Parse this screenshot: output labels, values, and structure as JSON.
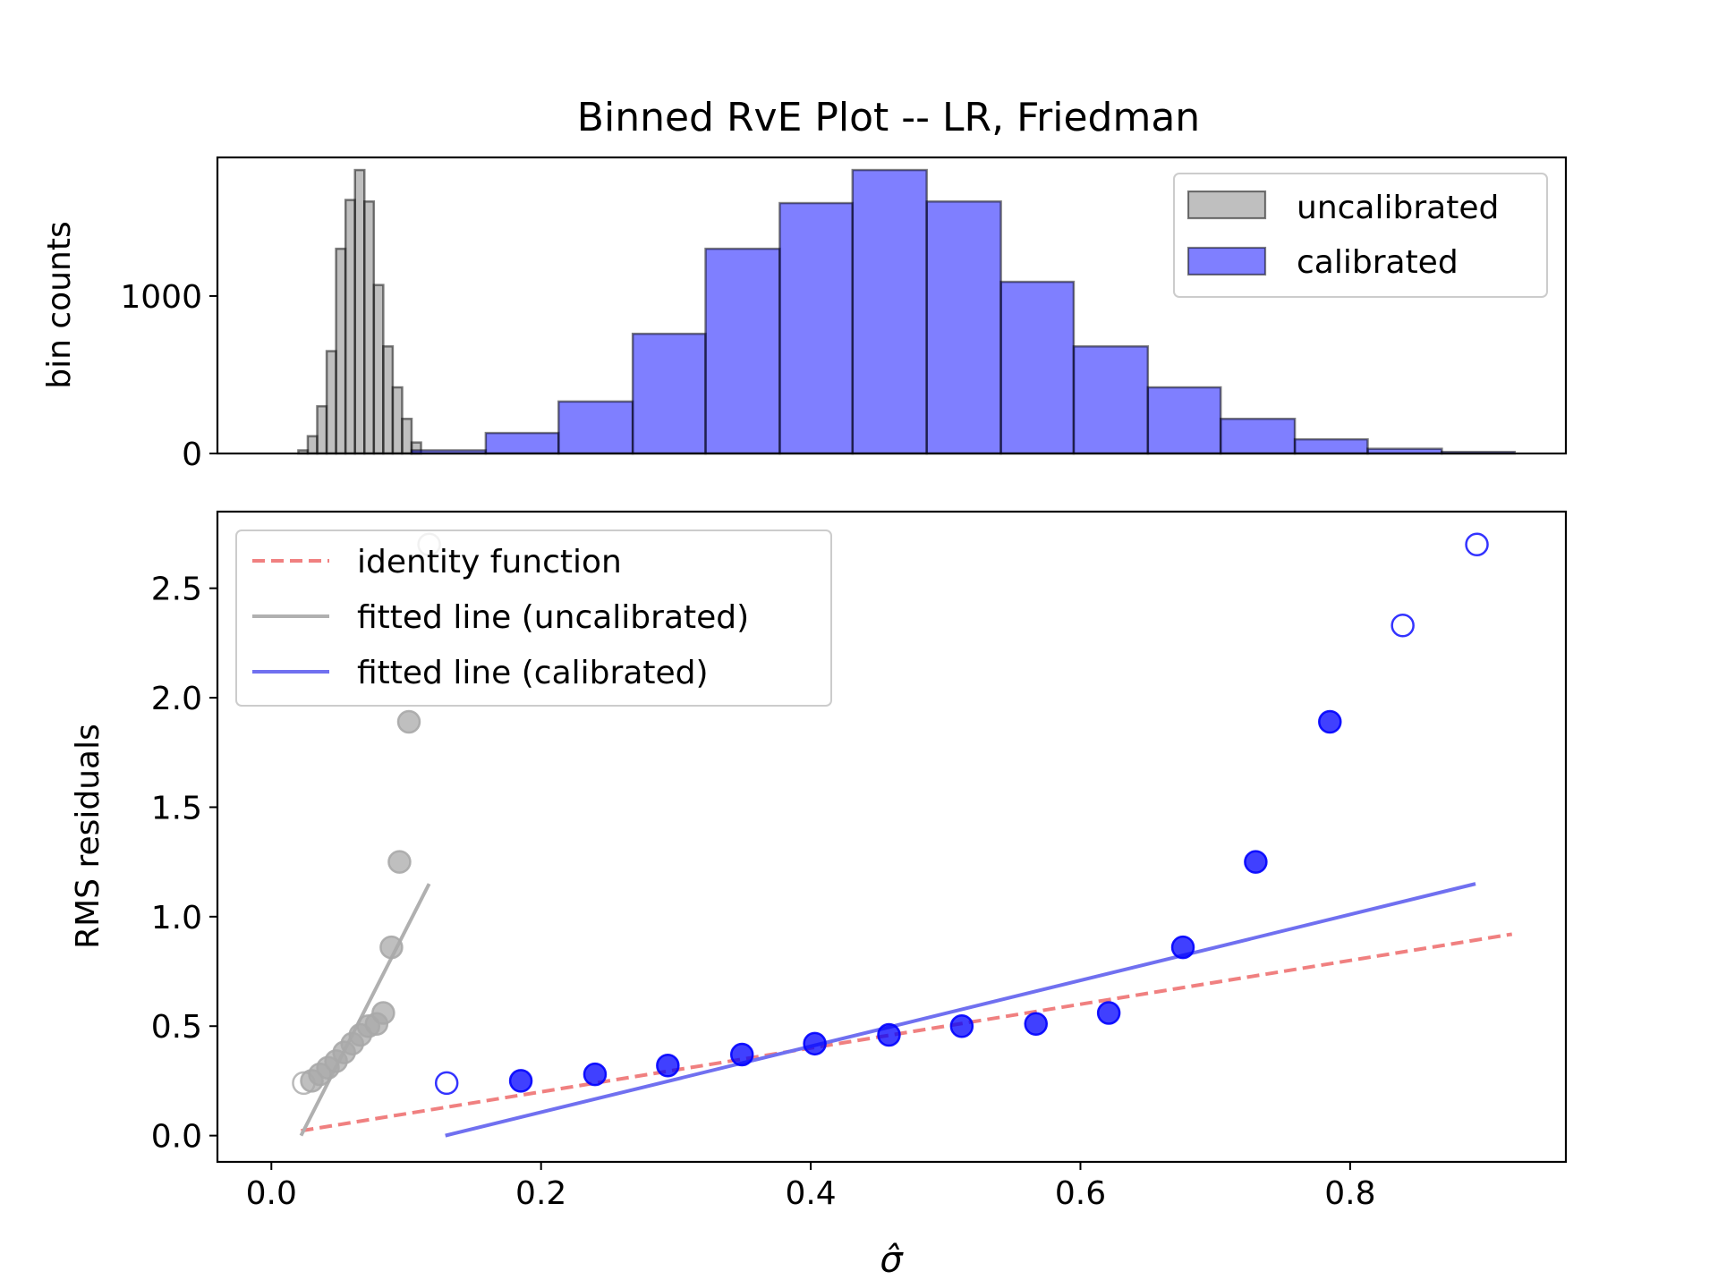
{
  "chart_data": [
    {
      "type": "bar",
      "subtype": "histogram",
      "title": "Binned RvE Plot -- LR, Friedman",
      "ylabel": "bin counts",
      "xlim": [
        -0.04,
        0.96
      ],
      "ylim": [
        0,
        1880
      ],
      "yticks": [
        0,
        1000
      ],
      "legend_position": "top-right",
      "series": [
        {
          "name": "uncalibrated",
          "color": "#808080",
          "edges": [
            0.02,
            0.027,
            0.034,
            0.041,
            0.048,
            0.055,
            0.062,
            0.069,
            0.076,
            0.083,
            0.09,
            0.097,
            0.104,
            0.111
          ],
          "counts": [
            20,
            110,
            300,
            650,
            1300,
            1610,
            1800,
            1600,
            1070,
            680,
            420,
            220,
            70
          ]
        },
        {
          "name": "calibrated",
          "color": "#0000ff",
          "edges": [
            0.104,
            0.159,
            0.213,
            0.268,
            0.322,
            0.377,
            0.431,
            0.486,
            0.541,
            0.595,
            0.65,
            0.704,
            0.759,
            0.813,
            0.868,
            0.922
          ],
          "counts": [
            20,
            130,
            330,
            760,
            1300,
            1590,
            1800,
            1600,
            1090,
            680,
            420,
            220,
            90,
            30,
            10
          ]
        }
      ]
    },
    {
      "type": "scatter",
      "xlabel": "σ̂",
      "ylabel": "RMS residuals",
      "xlim": [
        -0.04,
        0.96
      ],
      "ylim": [
        -0.12,
        2.85
      ],
      "xticks": [
        0.0,
        0.2,
        0.4,
        0.6,
        0.8
      ],
      "xtick_labels": [
        "0.0",
        "0.2",
        "0.4",
        "0.6",
        "0.8"
      ],
      "yticks": [
        0.0,
        0.5,
        1.0,
        1.5,
        2.0,
        2.5
      ],
      "ytick_labels": [
        "0.0",
        "0.5",
        "1.0",
        "1.5",
        "2.0",
        "2.5"
      ],
      "legend_position": "top-left",
      "lines": [
        {
          "name": "identity function",
          "color": "#f08080",
          "style": "dashed",
          "x": [
            0.022,
            0.92
          ],
          "y": [
            0.022,
            0.92
          ]
        },
        {
          "name": "fitted line (uncalibrated)",
          "color": "#b0b0b0",
          "style": "solid",
          "x": [
            0.022,
            0.117
          ],
          "y": [
            0.0,
            1.15
          ]
        },
        {
          "name": "fitted line (calibrated)",
          "color": "#7070f0",
          "style": "solid",
          "x": [
            0.129,
            0.893
          ],
          "y": [
            0.0,
            1.15
          ]
        }
      ],
      "points": [
        {
          "series": "uncalibrated",
          "color": "#a9a9a9",
          "x": [
            0.024,
            0.03,
            0.036,
            0.042,
            0.048,
            0.054,
            0.06,
            0.066,
            0.072,
            0.078,
            0.083,
            0.089,
            0.095,
            0.102,
            0.117
          ],
          "y": [
            0.24,
            0.25,
            0.28,
            0.31,
            0.34,
            0.38,
            0.42,
            0.46,
            0.5,
            0.51,
            0.56,
            0.86,
            1.25,
            1.89,
            2.7
          ],
          "filled": [
            false,
            true,
            true,
            true,
            true,
            true,
            true,
            true,
            true,
            true,
            true,
            true,
            true,
            true,
            false
          ]
        },
        {
          "series": "calibrated",
          "color": "#0000ff",
          "x": [
            0.13,
            0.185,
            0.24,
            0.294,
            0.349,
            0.403,
            0.458,
            0.512,
            0.567,
            0.621,
            0.676,
            0.73,
            0.785,
            0.839,
            0.894
          ],
          "y": [
            0.24,
            0.25,
            0.28,
            0.32,
            0.37,
            0.42,
            0.46,
            0.5,
            0.51,
            0.56,
            0.86,
            1.25,
            1.89,
            2.33,
            2.7
          ],
          "filled": [
            false,
            true,
            true,
            true,
            true,
            true,
            true,
            true,
            true,
            true,
            true,
            true,
            true,
            false,
            false
          ]
        }
      ]
    }
  ]
}
